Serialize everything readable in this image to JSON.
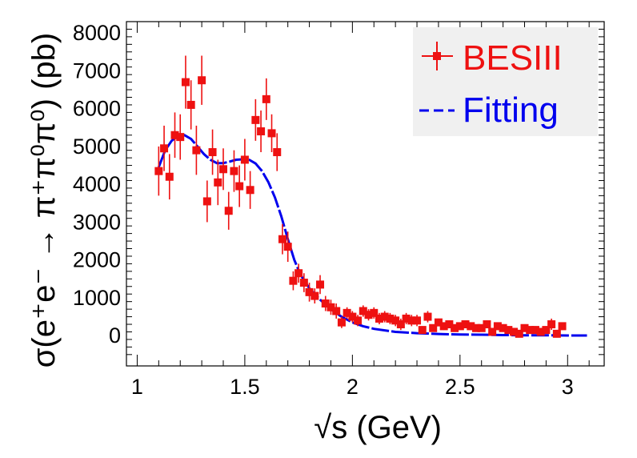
{
  "chart_data": {
    "type": "scatter",
    "title": "",
    "xlabel": "√s (GeV)",
    "ylabel": "σ(e⁺e⁻ → π⁺π⁰π⁰) (pb)",
    "xlim": [
      0.95,
      3.17
    ],
    "ylim": [
      -800,
      8300
    ],
    "x_ticks": [
      "1",
      "1.5",
      "2",
      "2.5",
      "3"
    ],
    "y_ticks": [
      "0",
      "1000",
      "2000",
      "3000",
      "4000",
      "5000",
      "6000",
      "7000",
      "8000"
    ],
    "grid": false,
    "legend": {
      "placement": "top-right",
      "entries": [
        {
          "label": "BESIII",
          "color": "#ee1111",
          "style": "marker-errorbar"
        },
        {
          "label": "Fitting",
          "color": "#0000ee",
          "style": "dashed-line"
        }
      ]
    },
    "series": [
      {
        "name": "BESIII",
        "color": "#ee1111",
        "points": [
          [
            1.1,
            4350,
            650
          ],
          [
            1.125,
            4950,
            600
          ],
          [
            1.15,
            4200,
            600
          ],
          [
            1.175,
            5300,
            600
          ],
          [
            1.2,
            5250,
            600
          ],
          [
            1.225,
            6700,
            700
          ],
          [
            1.25,
            6100,
            650
          ],
          [
            1.275,
            4900,
            650
          ],
          [
            1.3,
            6750,
            650
          ],
          [
            1.325,
            3550,
            550
          ],
          [
            1.35,
            4850,
            600
          ],
          [
            1.375,
            4050,
            600
          ],
          [
            1.4,
            4400,
            550
          ],
          [
            1.425,
            3300,
            500
          ],
          [
            1.45,
            4350,
            550
          ],
          [
            1.475,
            3950,
            550
          ],
          [
            1.5,
            4650,
            550
          ],
          [
            1.525,
            3850,
            500
          ],
          [
            1.55,
            5700,
            550
          ],
          [
            1.575,
            5400,
            550
          ],
          [
            1.6,
            6250,
            550
          ],
          [
            1.625,
            5350,
            500
          ],
          [
            1.65,
            4850,
            500
          ],
          [
            1.675,
            2550,
            400
          ],
          [
            1.7,
            2350,
            400
          ],
          [
            1.725,
            1450,
            250
          ],
          [
            1.75,
            1650,
            250
          ],
          [
            1.775,
            1400,
            250
          ],
          [
            1.8,
            1150,
            250
          ],
          [
            1.825,
            1050,
            200
          ],
          [
            1.85,
            1350,
            250
          ],
          [
            1.875,
            850,
            200
          ],
          [
            1.9,
            750,
            200
          ],
          [
            1.925,
            650,
            200
          ],
          [
            1.95,
            350,
            150
          ],
          [
            1.975,
            600,
            150
          ],
          [
            2.0,
            500,
            150
          ],
          [
            2.025,
            400,
            150
          ],
          [
            2.05,
            650,
            150
          ],
          [
            2.075,
            550,
            150
          ],
          [
            2.1,
            600,
            150
          ],
          [
            2.125,
            450,
            150
          ],
          [
            2.15,
            500,
            150
          ],
          [
            2.175,
            450,
            150
          ],
          [
            2.2,
            400,
            150
          ],
          [
            2.225,
            300,
            150
          ],
          [
            2.25,
            450,
            150
          ],
          [
            2.275,
            400,
            150
          ],
          [
            2.3,
            400,
            150
          ],
          [
            2.325,
            150,
            100
          ],
          [
            2.35,
            500,
            150
          ],
          [
            2.375,
            200,
            100
          ],
          [
            2.4,
            350,
            100
          ],
          [
            2.425,
            250,
            100
          ],
          [
            2.45,
            300,
            100
          ],
          [
            2.475,
            200,
            100
          ],
          [
            2.5,
            250,
            100
          ],
          [
            2.525,
            300,
            100
          ],
          [
            2.55,
            250,
            100
          ],
          [
            2.575,
            200,
            100
          ],
          [
            2.6,
            200,
            100
          ],
          [
            2.625,
            300,
            100
          ],
          [
            2.65,
            100,
            100
          ],
          [
            2.675,
            250,
            100
          ],
          [
            2.7,
            200,
            100
          ],
          [
            2.725,
            150,
            100
          ],
          [
            2.75,
            100,
            100
          ],
          [
            2.775,
            50,
            100
          ],
          [
            2.8,
            200,
            100
          ],
          [
            2.825,
            150,
            100
          ],
          [
            2.85,
            150,
            100
          ],
          [
            2.875,
            100,
            100
          ],
          [
            2.9,
            150,
            100
          ],
          [
            2.925,
            300,
            150
          ],
          [
            2.95,
            50,
            100
          ],
          [
            2.975,
            250,
            100
          ]
        ]
      },
      {
        "name": "Fitting",
        "color": "#0000ee",
        "style": "dashed",
        "points": [
          [
            1.1,
            4450
          ],
          [
            1.13,
            4900
          ],
          [
            1.16,
            5150
          ],
          [
            1.19,
            5280
          ],
          [
            1.22,
            5300
          ],
          [
            1.25,
            5200
          ],
          [
            1.28,
            5000
          ],
          [
            1.31,
            4800
          ],
          [
            1.34,
            4650
          ],
          [
            1.37,
            4560
          ],
          [
            1.4,
            4560
          ],
          [
            1.43,
            4600
          ],
          [
            1.46,
            4650
          ],
          [
            1.49,
            4660
          ],
          [
            1.52,
            4650
          ],
          [
            1.55,
            4550
          ],
          [
            1.58,
            4350
          ],
          [
            1.61,
            4050
          ],
          [
            1.64,
            3650
          ],
          [
            1.67,
            3150
          ],
          [
            1.7,
            2550
          ],
          [
            1.73,
            2000
          ],
          [
            1.76,
            1600
          ],
          [
            1.8,
            1250
          ],
          [
            1.85,
            950
          ],
          [
            1.9,
            700
          ],
          [
            1.95,
            500
          ],
          [
            2.0,
            350
          ],
          [
            2.05,
            250
          ],
          [
            2.1,
            180
          ],
          [
            2.2,
            100
          ],
          [
            2.3,
            65
          ],
          [
            2.4,
            45
          ],
          [
            2.5,
            30
          ],
          [
            2.6,
            25
          ],
          [
            2.7,
            15
          ],
          [
            2.8,
            10
          ],
          [
            2.9,
            10
          ],
          [
            3.0,
            5
          ],
          [
            3.09,
            5
          ]
        ]
      }
    ]
  }
}
